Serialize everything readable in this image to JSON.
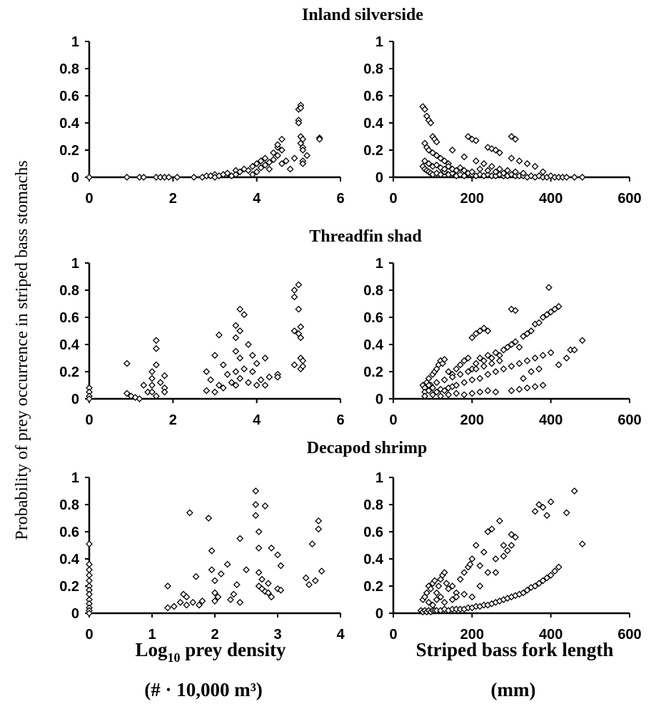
{
  "y_axis_label": "Probability of prey occurrence in striped bass stomachs",
  "x_axis_label_left": {
    "line1_prefix": "Log",
    "line1_subscript": "10",
    "line1_suffix": " prey density",
    "line2": "(# · 10,000 m³)"
  },
  "x_axis_label_right": {
    "line1": "Striped bass fork length",
    "line2": "(mm)"
  },
  "chart_data": [
    {
      "type": "scatter",
      "panel_title": "Inland silverside",
      "xlabel": "Log10 prey density (# · 10,000 m³)",
      "xlim": [
        0,
        6
      ],
      "xticks": [
        "0",
        "2",
        "4",
        "6"
      ],
      "ylim": [
        0,
        1
      ],
      "yticks": [
        "0",
        "0.2",
        "0.4",
        "0.6",
        "0.8",
        "1"
      ],
      "x": [
        0.0,
        0.9,
        1.2,
        1.3,
        1.6,
        1.7,
        1.8,
        1.9,
        2.1,
        2.5,
        2.7,
        2.8,
        2.9,
        3.0,
        3.0,
        3.1,
        3.2,
        3.3,
        3.4,
        3.5,
        3.5,
        3.6,
        3.7,
        3.8,
        3.9,
        3.9,
        4.0,
        4.0,
        4.1,
        4.1,
        4.2,
        4.2,
        4.3,
        4.3,
        4.4,
        4.4,
        4.5,
        4.5,
        4.5,
        4.6,
        4.6,
        4.6,
        4.7,
        4.8,
        4.9,
        5.0,
        5.0,
        5.0,
        5.05,
        5.05,
        5.05,
        5.05,
        5.1,
        5.1,
        5.1,
        5.1,
        5.1,
        5.2,
        5.5,
        5.5
      ],
      "y": [
        0.0,
        0.0,
        0.0,
        0.0,
        0.0,
        0.0,
        0.0,
        0.0,
        0.0,
        0.0,
        0.0,
        0.01,
        0.01,
        0.02,
        0.0,
        0.01,
        0.02,
        0.03,
        0.01,
        0.05,
        0.02,
        0.04,
        0.06,
        0.05,
        0.08,
        0.02,
        0.1,
        0.04,
        0.07,
        0.12,
        0.09,
        0.14,
        0.11,
        0.06,
        0.18,
        0.13,
        0.22,
        0.16,
        0.24,
        0.28,
        0.2,
        0.1,
        0.12,
        0.06,
        0.14,
        0.42,
        0.4,
        0.5,
        0.53,
        0.51,
        0.3,
        0.25,
        0.28,
        0.22,
        0.2,
        0.12,
        0.1,
        0.16,
        0.29,
        0.28
      ]
    },
    {
      "type": "scatter",
      "panel_title": "Inland silverside",
      "xlabel": "Striped bass fork length (mm)",
      "xlim": [
        0,
        600
      ],
      "xticks": [
        "0",
        "200",
        "400",
        "600"
      ],
      "ylim": [
        0,
        1
      ],
      "yticks": [
        "0",
        "0.2",
        "0.4",
        "0.6",
        "0.8",
        "1"
      ],
      "x": [
        75,
        80,
        85,
        90,
        95,
        100,
        105,
        110,
        80,
        85,
        90,
        100,
        110,
        120,
        130,
        140,
        75,
        80,
        85,
        90,
        95,
        100,
        110,
        120,
        130,
        140,
        150,
        160,
        170,
        180,
        190,
        200,
        210,
        220,
        230,
        240,
        250,
        260,
        270,
        280,
        290,
        300,
        310,
        320,
        330,
        340,
        350,
        360,
        370,
        380,
        390,
        400,
        410,
        420,
        430,
        440,
        460,
        480,
        190,
        200,
        210,
        240,
        250,
        260,
        270,
        300,
        310,
        80,
        90,
        100,
        110,
        120,
        130,
        140,
        150,
        160,
        170,
        180,
        200,
        220,
        240,
        260,
        280,
        300,
        320,
        340,
        360,
        380,
        150,
        180,
        210,
        230,
        250,
        270,
        290,
        310,
        330
      ],
      "y": [
        0.52,
        0.5,
        0.45,
        0.42,
        0.4,
        0.3,
        0.28,
        0.26,
        0.25,
        0.22,
        0.2,
        0.18,
        0.16,
        0.14,
        0.12,
        0.1,
        0.08,
        0.06,
        0.05,
        0.04,
        0.03,
        0.02,
        0.03,
        0.02,
        0.04,
        0.02,
        0.03,
        0.01,
        0.02,
        0.01,
        0.03,
        0.02,
        0.01,
        0.02,
        0.01,
        0.02,
        0.01,
        0.01,
        0.02,
        0.01,
        0.01,
        0.02,
        0.01,
        0.01,
        0.01,
        0.0,
        0.01,
        0.0,
        0.01,
        0.0,
        0.0,
        0.01,
        0.0,
        0.0,
        0.0,
        0.0,
        0.0,
        0.0,
        0.3,
        0.28,
        0.27,
        0.22,
        0.21,
        0.2,
        0.18,
        0.3,
        0.28,
        0.12,
        0.1,
        0.08,
        0.09,
        0.07,
        0.06,
        0.08,
        0.06,
        0.05,
        0.07,
        0.05,
        0.04,
        0.06,
        0.05,
        0.04,
        0.03,
        0.14,
        0.12,
        0.1,
        0.08,
        0.04,
        0.2,
        0.15,
        0.12,
        0.1,
        0.08,
        0.06,
        0.05,
        0.04,
        0.03
      ]
    },
    {
      "type": "scatter",
      "panel_title": "Threadfin shad",
      "xlabel": "Log10 prey density (# · 10,000 m³)",
      "xlim": [
        0,
        6
      ],
      "xticks": [
        "0",
        "2",
        "4",
        "6"
      ],
      "ylim": [
        0,
        1
      ],
      "yticks": [
        "0",
        "0.2",
        "0.4",
        "0.6",
        "0.8",
        "1"
      ],
      "x": [
        0,
        0,
        0,
        0,
        0.9,
        0.9,
        1.0,
        1.1,
        1.2,
        1.3,
        1.4,
        1.5,
        1.5,
        1.5,
        1.5,
        1.6,
        1.6,
        1.6,
        1.6,
        1.7,
        1.8,
        1.8,
        1.8,
        2.8,
        2.8,
        2.9,
        3.0,
        3.0,
        3.1,
        3.1,
        3.2,
        3.2,
        3.3,
        3.4,
        3.5,
        3.5,
        3.5,
        3.5,
        3.5,
        3.6,
        3.6,
        3.6,
        3.6,
        3.7,
        3.7,
        3.8,
        3.8,
        3.9,
        3.9,
        4.0,
        4.0,
        4.1,
        4.2,
        4.2,
        4.3,
        4.5,
        4.5,
        4.9,
        4.9,
        4.9,
        4.9,
        5.0,
        5.0,
        5.0,
        5.05,
        5.05,
        5.05,
        5.05,
        5.1,
        5.1
      ],
      "y": [
        0.08,
        0.05,
        0.02,
        0.0,
        0.26,
        0.04,
        0.02,
        0.01,
        0.0,
        0.1,
        0.05,
        0.2,
        0.15,
        0.1,
        0.05,
        0.43,
        0.37,
        0.25,
        0.02,
        0.12,
        0.17,
        0.08,
        0.05,
        0.2,
        0.06,
        0.14,
        0.32,
        0.05,
        0.47,
        0.1,
        0.25,
        0.08,
        0.18,
        0.12,
        0.54,
        0.45,
        0.35,
        0.2,
        0.1,
        0.66,
        0.5,
        0.3,
        0.15,
        0.62,
        0.22,
        0.4,
        0.12,
        0.32,
        0.2,
        0.26,
        0.1,
        0.14,
        0.3,
        0.1,
        0.16,
        0.18,
        0.16,
        0.8,
        0.75,
        0.5,
        0.25,
        0.84,
        0.66,
        0.48,
        0.53,
        0.45,
        0.3,
        0.22,
        0.24,
        0.28
      ]
    },
    {
      "type": "scatter",
      "panel_title": "Threadfin shad",
      "xlabel": "Striped bass fork length (mm)",
      "xlim": [
        0,
        600
      ],
      "xticks": [
        "0",
        "200",
        "400",
        "600"
      ],
      "ylim": [
        0,
        1
      ],
      "yticks": [
        "0",
        "0.2",
        "0.4",
        "0.6",
        "0.8",
        "1"
      ],
      "x": [
        75,
        80,
        85,
        90,
        95,
        100,
        105,
        110,
        115,
        120,
        125,
        130,
        140,
        150,
        160,
        170,
        180,
        190,
        200,
        210,
        220,
        230,
        240,
        250,
        260,
        270,
        280,
        290,
        300,
        310,
        320,
        330,
        340,
        350,
        360,
        370,
        380,
        390,
        400,
        410,
        420,
        450,
        480,
        80,
        90,
        100,
        110,
        120,
        130,
        140,
        150,
        160,
        180,
        200,
        220,
        240,
        260,
        280,
        300,
        320,
        340,
        360,
        380,
        400,
        420,
        440,
        460,
        80,
        100,
        120,
        140,
        160,
        180,
        200,
        220,
        240,
        260,
        300,
        320,
        340,
        360,
        380,
        90,
        110,
        130,
        150,
        170,
        190,
        210,
        230,
        250,
        270,
        300,
        310,
        330,
        350,
        370,
        395,
        200,
        210,
        220,
        230,
        240
      ],
      "y": [
        0.1,
        0.08,
        0.12,
        0.15,
        0.1,
        0.18,
        0.2,
        0.22,
        0.25,
        0.28,
        0.26,
        0.29,
        0.2,
        0.18,
        0.22,
        0.25,
        0.28,
        0.3,
        0.22,
        0.26,
        0.3,
        0.28,
        0.32,
        0.3,
        0.34,
        0.32,
        0.36,
        0.38,
        0.4,
        0.42,
        0.38,
        0.46,
        0.48,
        0.5,
        0.55,
        0.56,
        0.6,
        0.62,
        0.64,
        0.66,
        0.68,
        0.36,
        0.43,
        0.05,
        0.06,
        0.08,
        0.05,
        0.07,
        0.06,
        0.08,
        0.09,
        0.1,
        0.12,
        0.14,
        0.15,
        0.18,
        0.2,
        0.22,
        0.24,
        0.26,
        0.28,
        0.3,
        0.32,
        0.34,
        0.25,
        0.3,
        0.36,
        0.02,
        0.03,
        0.02,
        0.03,
        0.04,
        0.03,
        0.04,
        0.05,
        0.06,
        0.05,
        0.06,
        0.07,
        0.08,
        0.09,
        0.1,
        0.1,
        0.12,
        0.14,
        0.16,
        0.18,
        0.2,
        0.22,
        0.24,
        0.26,
        0.28,
        0.66,
        0.65,
        0.15,
        0.2,
        0.22,
        0.82,
        0.45,
        0.48,
        0.5,
        0.52,
        0.5
      ]
    },
    {
      "type": "scatter",
      "panel_title": "Decapod shrimp",
      "xlabel": "Log10 prey density (# · 10,000 m³)",
      "xlim": [
        0,
        4
      ],
      "xticks": [
        "0",
        "1",
        "2",
        "3",
        "4"
      ],
      "ylim": [
        0,
        1
      ],
      "yticks": [
        "0",
        "0.2",
        "0.4",
        "0.6",
        "0.8",
        "1"
      ],
      "x": [
        0,
        0,
        0,
        0,
        0,
        0,
        0,
        0,
        0,
        0,
        0,
        0,
        0,
        1.25,
        1.25,
        1.35,
        1.45,
        1.5,
        1.55,
        1.55,
        1.6,
        1.65,
        1.7,
        1.75,
        1.8,
        1.9,
        1.95,
        1.95,
        2.0,
        2.0,
        2.0,
        2.05,
        2.1,
        2.2,
        2.25,
        2.3,
        2.35,
        2.4,
        2.4,
        2.5,
        2.65,
        2.65,
        2.65,
        2.7,
        2.7,
        2.7,
        2.7,
        2.75,
        2.75,
        2.8,
        2.8,
        2.85,
        2.85,
        2.9,
        2.9,
        3.0,
        3.0,
        3.05,
        3.05,
        3.45,
        3.5,
        3.55,
        3.6,
        3.65,
        3.65,
        3.7
      ],
      "y": [
        0.51,
        0.36,
        0.32,
        0.28,
        0.24,
        0.2,
        0.17,
        0.14,
        0.1,
        0.07,
        0.04,
        0.02,
        0.0,
        0.2,
        0.04,
        0.05,
        0.08,
        0.14,
        0.12,
        0.06,
        0.74,
        0.08,
        0.27,
        0.06,
        0.09,
        0.7,
        0.46,
        0.32,
        0.24,
        0.15,
        0.09,
        0.12,
        0.29,
        0.36,
        0.1,
        0.14,
        0.21,
        0.55,
        0.08,
        0.32,
        0.9,
        0.8,
        0.72,
        0.6,
        0.48,
        0.3,
        0.2,
        0.25,
        0.18,
        0.79,
        0.16,
        0.15,
        0.22,
        0.48,
        0.12,
        0.43,
        0.18,
        0.35,
        0.17,
        0.26,
        0.21,
        0.51,
        0.24,
        0.68,
        0.62,
        0.31
      ],
      "xlabel_2": ""
    },
    {
      "type": "scatter",
      "panel_title": "Decapod shrimp",
      "xlabel": "Striped bass fork length (mm)",
      "xlim": [
        0,
        600
      ],
      "xticks": [
        "0",
        "200",
        "400",
        "600"
      ],
      "ylim": [
        0,
        1
      ],
      "yticks": [
        "0",
        "0.2",
        "0.4",
        "0.6",
        "0.8",
        "1"
      ],
      "x": [
        70,
        75,
        80,
        85,
        90,
        95,
        100,
        105,
        110,
        120,
        130,
        140,
        150,
        160,
        170,
        180,
        190,
        200,
        210,
        220,
        230,
        240,
        250,
        260,
        270,
        280,
        290,
        300,
        310,
        320,
        330,
        340,
        350,
        360,
        370,
        380,
        390,
        400,
        410,
        420,
        75,
        80,
        85,
        90,
        95,
        100,
        105,
        110,
        115,
        120,
        125,
        130,
        135,
        140,
        150,
        160,
        170,
        180,
        190,
        195,
        200,
        210,
        220,
        230,
        240,
        250,
        260,
        270,
        280,
        290,
        300,
        310,
        360,
        370,
        380,
        390,
        400,
        440,
        460,
        480,
        90,
        100,
        110,
        120,
        130,
        150,
        160,
        180,
        200,
        220,
        240,
        260,
        280,
        300
      ],
      "y": [
        0.02,
        0.01,
        0.02,
        0.01,
        0.02,
        0.01,
        0.02,
        0.02,
        0.02,
        0.02,
        0.03,
        0.02,
        0.03,
        0.03,
        0.03,
        0.03,
        0.04,
        0.04,
        0.05,
        0.05,
        0.06,
        0.06,
        0.07,
        0.08,
        0.09,
        0.1,
        0.11,
        0.12,
        0.13,
        0.14,
        0.15,
        0.17,
        0.19,
        0.2,
        0.22,
        0.24,
        0.26,
        0.28,
        0.31,
        0.34,
        0.1,
        0.12,
        0.15,
        0.2,
        0.18,
        0.22,
        0.24,
        0.15,
        0.2,
        0.25,
        0.28,
        0.3,
        0.22,
        0.18,
        0.2,
        0.15,
        0.25,
        0.3,
        0.34,
        0.36,
        0.4,
        0.5,
        0.35,
        0.45,
        0.6,
        0.62,
        0.3,
        0.68,
        0.5,
        0.46,
        0.58,
        0.56,
        0.75,
        0.8,
        0.78,
        0.72,
        0.82,
        0.74,
        0.9,
        0.51,
        0.08,
        0.06,
        0.1,
        0.12,
        0.08,
        0.1,
        0.12,
        0.14,
        0.12,
        0.2,
        0.3,
        0.4,
        0.42,
        0.5
      ]
    }
  ]
}
